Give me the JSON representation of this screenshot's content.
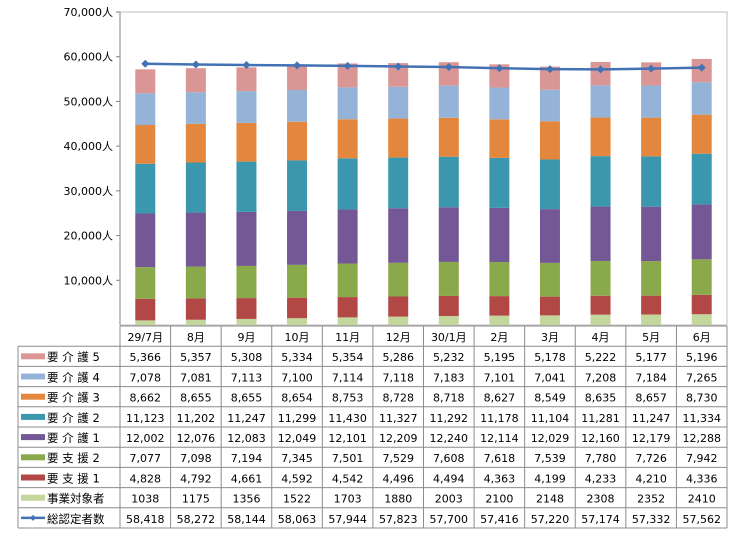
{
  "chart_data": {
    "type": "bar",
    "stacked": true,
    "categories": [
      "29/7月",
      "8月",
      "9月",
      "10月",
      "11月",
      "12月",
      "30/1月",
      "2月",
      "3月",
      "4月",
      "5月",
      "6月"
    ],
    "ylim": [
      0,
      70000
    ],
    "yticks": [
      "10,000人",
      "20,000人",
      "30,000人",
      "40,000人",
      "50,000人",
      "60,000人",
      "70,000人"
    ],
    "ytick_values": [
      10000,
      20000,
      30000,
      40000,
      50000,
      60000,
      70000
    ],
    "series": [
      {
        "name": "要 介 護 5",
        "color": "#D99694",
        "values": [
          "5,366",
          "5,357",
          "5,308",
          "5,334",
          "5,354",
          "5,286",
          "5,232",
          "5,195",
          "5,178",
          "5,222",
          "5,177",
          "5,196"
        ]
      },
      {
        "name": "要 介 護 4",
        "color": "#95B3D7",
        "values": [
          "7,078",
          "7,081",
          "7,113",
          "7,100",
          "7,114",
          "7,118",
          "7,183",
          "7,101",
          "7,041",
          "7,208",
          "7,184",
          "7,265"
        ]
      },
      {
        "name": "要 介 護 3",
        "color": "#E3873E",
        "values": [
          "8,662",
          "8,655",
          "8,655",
          "8,654",
          "8,753",
          "8,728",
          "8,718",
          "8,627",
          "8,549",
          "8,635",
          "8,657",
          "8,730"
        ]
      },
      {
        "name": "要 介 護 2",
        "color": "#3B97AD",
        "values": [
          "11,123",
          "11,202",
          "11,247",
          "11,299",
          "11,430",
          "11,327",
          "11,292",
          "11,178",
          "11,104",
          "11,281",
          "11,247",
          "11,334"
        ]
      },
      {
        "name": "要 介 護 1",
        "color": "#735895",
        "values": [
          "12,002",
          "12,076",
          "12,083",
          "12,049",
          "12,101",
          "12,209",
          "12,240",
          "12,114",
          "12,029",
          "12,160",
          "12,179",
          "12,288"
        ]
      },
      {
        "name": "要 支 援 2",
        "color": "#8AA94A",
        "values": [
          "7,077",
          "7,098",
          "7,194",
          "7,345",
          "7,501",
          "7,529",
          "7,608",
          "7,618",
          "7,539",
          "7,780",
          "7,726",
          "7,942"
        ]
      },
      {
        "name": "要 支 援 1",
        "color": "#B24845",
        "values": [
          "4,828",
          "4,792",
          "4,661",
          "4,592",
          "4,542",
          "4,496",
          "4,494",
          "4,363",
          "4,199",
          "4,233",
          "4,210",
          "4,336"
        ]
      },
      {
        "name": "事業対象者",
        "color": "#C3D69B",
        "values": [
          "1038",
          "1175",
          "1356",
          "1522",
          "1703",
          "1880",
          "2003",
          "2100",
          "2148",
          "2308",
          "2352",
          "2410"
        ]
      }
    ],
    "line_series": {
      "name": "総認定者数",
      "color": "#4372B4",
      "type": "line",
      "values": [
        "58,418",
        "58,272",
        "58,144",
        "58,063",
        "57,944",
        "57,823",
        "57,700",
        "57,416",
        "57,220",
        "57,174",
        "57,332",
        "57,562"
      ]
    }
  }
}
